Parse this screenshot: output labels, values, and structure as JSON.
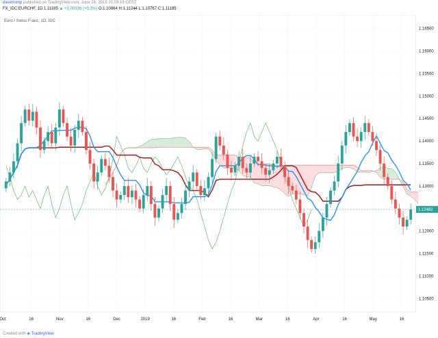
{
  "header": {
    "author": "davetromp",
    "published": "published on TradingView.com, June 26, 2019 20:09:16 CEST",
    "symbol": "FX_IDC:EURCHF, 1D",
    "last_price": "1.11185",
    "change": "▲ +0.00336 (+0.3%)",
    "ohlc": "O:1.10864 H:1.11244 L:1.10767 C:1.11185"
  },
  "chart_title": "Euro / Swiss Franc, 1D, IDC",
  "footer": {
    "prefix": "Created with",
    "brand": "TradingView"
  },
  "colors": {
    "up": "#26a69a",
    "down": "#ef5350",
    "tenkan": "#2196f3",
    "kijun": "#a52a2a",
    "chikou": "#4caf50",
    "span_a": "#4caf50",
    "span_b": "#ef5350",
    "cloud_bull": "#c8e6c9",
    "cloud_bear": "#ffcdd2",
    "price_label": "#26a69a"
  },
  "chart_data": {
    "type": "candlestick",
    "indicator": "Ichimoku Cloud",
    "ylim": [
      1.102,
      1.168
    ],
    "y_ticks": [
      "1.16500",
      "1.16000",
      "1.15500",
      "1.15000",
      "1.14500",
      "1.14000",
      "1.13500",
      "1.13000",
      "1.12500",
      "1.12000",
      "1.11500",
      "1.11000",
      "1.10500"
    ],
    "x_tick_labels": [
      "Oct",
      "16",
      "Nov",
      "16",
      "Dec",
      "2019",
      "16",
      "Feb",
      "16",
      "Mar",
      "16",
      "Apr",
      "16",
      "May",
      "16"
    ],
    "current_price_label": "1.12482",
    "close": [
      1.131,
      1.133,
      1.1355,
      1.1395,
      1.144,
      1.147,
      1.1445,
      1.1465,
      1.143,
      1.138,
      1.14,
      1.142,
      1.1395,
      1.143,
      1.147,
      1.144,
      1.141,
      1.139,
      1.1425,
      1.1445,
      1.142,
      1.138,
      1.135,
      1.131,
      1.133,
      1.136,
      1.1345,
      1.132,
      1.129,
      1.127,
      1.128,
      1.13,
      1.1275,
      1.129,
      1.127,
      1.125,
      1.128,
      1.13,
      1.126,
      1.123,
      1.125,
      1.128,
      1.13,
      1.126,
      1.1225,
      1.124,
      1.126,
      1.129,
      1.131,
      1.133,
      1.13,
      1.128,
      1.1295,
      1.132,
      1.136,
      1.141,
      1.139,
      1.137,
      1.134,
      1.133,
      1.1345,
      1.1365,
      1.134,
      1.133,
      1.135,
      1.1365,
      1.1355,
      1.134,
      1.1325,
      1.1335,
      1.135,
      1.1365,
      1.1345,
      1.132,
      1.13,
      1.129,
      1.127,
      1.124,
      1.121,
      1.118,
      1.116,
      1.1175,
      1.12,
      1.123,
      1.126,
      1.129,
      1.131,
      1.135,
      1.139,
      1.142,
      1.144,
      1.141,
      1.14,
      1.142,
      1.144,
      1.142,
      1.14,
      1.138,
      1.135,
      1.132,
      1.13,
      1.127,
      1.125,
      1.123,
      1.121,
      1.1225,
      1.1248
    ]
  }
}
